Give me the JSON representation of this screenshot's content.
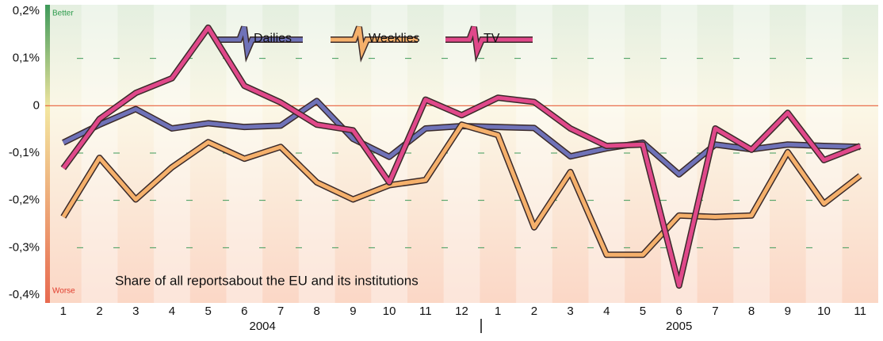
{
  "chart_data": {
    "type": "line",
    "categories": [
      "1",
      "2",
      "3",
      "4",
      "5",
      "6",
      "7",
      "8",
      "9",
      "10",
      "11",
      "12",
      "1",
      "2",
      "3",
      "4",
      "5",
      "6",
      "7",
      "8",
      "9",
      "10",
      "11"
    ],
    "groups": [
      "2004",
      "2005"
    ],
    "group_sizes": [
      12,
      11
    ],
    "series": [
      {
        "name": "Dailies",
        "color": "#6f72b8",
        "values": [
          -0.078,
          -0.04,
          -0.007,
          -0.048,
          -0.037,
          -0.045,
          -0.042,
          0.01,
          -0.07,
          -0.108,
          -0.048,
          -0.043,
          -0.045,
          -0.047,
          -0.107,
          -0.09,
          -0.078,
          -0.145,
          -0.082,
          -0.092,
          -0.082,
          -0.085,
          -0.087
        ]
      },
      {
        "name": "Weeklies",
        "color": "#f5b06b",
        "values": [
          -0.235,
          -0.11,
          -0.198,
          -0.13,
          -0.077,
          -0.112,
          -0.087,
          -0.162,
          -0.198,
          -0.168,
          -0.157,
          -0.04,
          -0.062,
          -0.257,
          -0.14,
          -0.315,
          -0.315,
          -0.232,
          -0.235,
          -0.232,
          -0.098,
          -0.207,
          -0.148
        ]
      },
      {
        "name": "TV",
        "color": "#e0488a",
        "values": [
          -0.132,
          -0.028,
          0.027,
          0.058,
          0.165,
          0.042,
          0.007,
          -0.04,
          -0.052,
          -0.162,
          0.013,
          -0.02,
          0.017,
          0.008,
          -0.048,
          -0.085,
          -0.082,
          -0.38,
          -0.048,
          -0.093,
          -0.015,
          -0.115,
          -0.085
        ]
      }
    ],
    "ylim": [
      -0.4,
      0.2
    ],
    "yticks": [
      {
        "value": 0.2,
        "label": "0,2%"
      },
      {
        "value": 0.1,
        "label": "0,1%"
      },
      0,
      {
        "value": -0.1,
        "label": "-0,1%"
      },
      {
        "value": -0.2,
        "label": "-0,2%"
      },
      {
        "value": -0.3,
        "label": "-0,3%"
      },
      {
        "value": -0.4,
        "label": "-0,4%"
      }
    ],
    "grid": true,
    "zero_line_color": "#e8603c",
    "annotations": {
      "better": "Better",
      "worse": "Worse",
      "note": "Share of all reportsabout the EU and its institutions"
    }
  }
}
